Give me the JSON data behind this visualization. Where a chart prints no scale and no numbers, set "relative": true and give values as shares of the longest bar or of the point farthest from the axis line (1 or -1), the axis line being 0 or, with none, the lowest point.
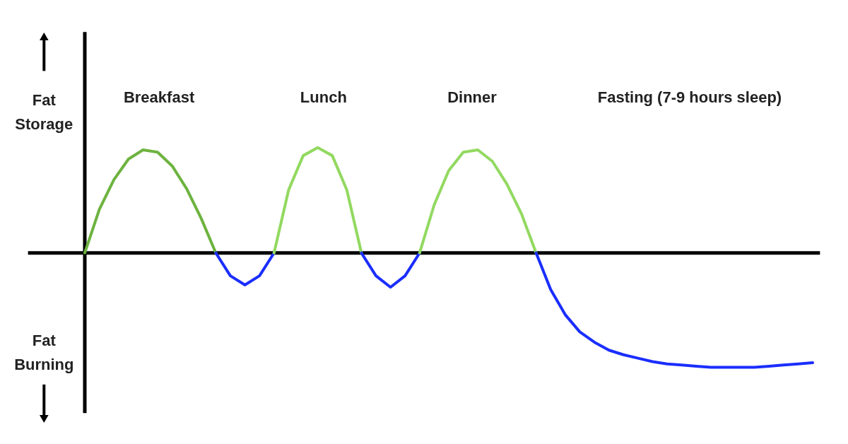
{
  "chart_data": {
    "type": "line",
    "relative": true,
    "categories": [
      null,
      null,
      null,
      null,
      null,
      null,
      null,
      null,
      null,
      null,
      null,
      null,
      null,
      null,
      null,
      null,
      null,
      null,
      null,
      null,
      null,
      null,
      null,
      null,
      null,
      null,
      null,
      null,
      null,
      null,
      null,
      null,
      null,
      null,
      null,
      null,
      null,
      null,
      null,
      null,
      null,
      null,
      null,
      null,
      null,
      null,
      null,
      null,
      null,
      null,
      null
    ],
    "series": [
      {
        "color": "#6db33f",
        "values": [
          0,
          0.38,
          0.64,
          0.82,
          0.9,
          0.88,
          0.76,
          0.56,
          0.3,
          0,
          null,
          null,
          null,
          null,
          null,
          null,
          null,
          null,
          null,
          null,
          null,
          null,
          null,
          null,
          null,
          null,
          null,
          null,
          null,
          null,
          null,
          null,
          null,
          null,
          null,
          null,
          null,
          null,
          null,
          null,
          null,
          null,
          null,
          null,
          null,
          null,
          null,
          null,
          null,
          null,
          null
        ]
      },
      {
        "color": "#1a2eff",
        "values": [
          null,
          null,
          null,
          null,
          null,
          null,
          null,
          null,
          null,
          0,
          -0.2,
          -0.28,
          -0.2,
          0,
          null,
          null,
          null,
          null,
          null,
          null,
          null,
          null,
          null,
          null,
          null,
          null,
          null,
          null,
          null,
          null,
          null,
          null,
          null,
          null,
          null,
          null,
          null,
          null,
          null,
          null,
          null,
          null,
          null,
          null,
          null,
          null,
          null,
          null,
          null,
          null,
          null
        ]
      },
      {
        "color": "#92d960",
        "values": [
          null,
          null,
          null,
          null,
          null,
          null,
          null,
          null,
          null,
          null,
          null,
          null,
          null,
          0,
          0.55,
          0.85,
          0.92,
          0.85,
          0.55,
          0,
          null,
          null,
          null,
          null,
          null,
          null,
          null,
          null,
          null,
          null,
          null,
          null,
          null,
          null,
          null,
          null,
          null,
          null,
          null,
          null,
          null,
          null,
          null,
          null,
          null,
          null,
          null,
          null,
          null,
          null,
          null
        ]
      },
      {
        "color": "#1a2eff",
        "values": [
          null,
          null,
          null,
          null,
          null,
          null,
          null,
          null,
          null,
          null,
          null,
          null,
          null,
          null,
          null,
          null,
          null,
          null,
          null,
          0,
          -0.2,
          -0.3,
          -0.2,
          0,
          null,
          null,
          null,
          null,
          null,
          null,
          null,
          null,
          null,
          null,
          null,
          null,
          null,
          null,
          null,
          null,
          null,
          null,
          null,
          null,
          null,
          null,
          null,
          null,
          null,
          null,
          null
        ]
      },
      {
        "color": "#92d960",
        "values": [
          null,
          null,
          null,
          null,
          null,
          null,
          null,
          null,
          null,
          null,
          null,
          null,
          null,
          null,
          null,
          null,
          null,
          null,
          null,
          null,
          null,
          null,
          null,
          0,
          0.42,
          0.72,
          0.88,
          0.9,
          0.8,
          0.6,
          0.34,
          0,
          null,
          null,
          null,
          null,
          null,
          null,
          null,
          null,
          null,
          null,
          null,
          null,
          null,
          null,
          null,
          null,
          null,
          null,
          null
        ]
      },
      {
        "color": "#1a2eff",
        "values": [
          null,
          null,
          null,
          null,
          null,
          null,
          null,
          null,
          null,
          null,
          null,
          null,
          null,
          null,
          null,
          null,
          null,
          null,
          null,
          null,
          null,
          null,
          null,
          null,
          null,
          null,
          null,
          null,
          null,
          null,
          null,
          0,
          -0.32,
          -0.54,
          -0.69,
          -0.78,
          -0.85,
          -0.89,
          -0.92,
          -0.95,
          -0.97,
          -0.98,
          -0.99,
          -1.0,
          -1.0,
          -1.0,
          -1.0,
          -0.99,
          -0.98,
          -0.97,
          -0.96
        ]
      }
    ],
    "annotations": [
      "Breakfast",
      "Lunch",
      "Dinner",
      "Fasting (7-9 hours sleep)",
      "Fat Storage",
      "Fat Burning"
    ]
  }
}
